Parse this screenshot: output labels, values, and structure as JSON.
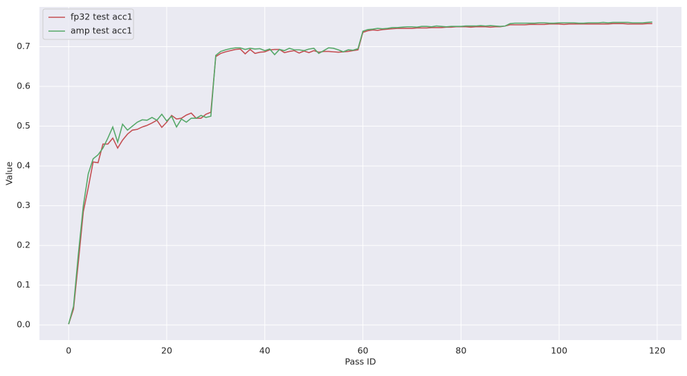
{
  "chart_data": {
    "type": "line",
    "x_label": "Pass ID",
    "y_label": "Value",
    "x": [
      0,
      1,
      2,
      3,
      4,
      5,
      6,
      7,
      8,
      9,
      10,
      11,
      12,
      13,
      14,
      15,
      16,
      17,
      18,
      19,
      20,
      21,
      22,
      23,
      24,
      25,
      26,
      27,
      28,
      29,
      30,
      31,
      32,
      33,
      34,
      35,
      36,
      37,
      38,
      39,
      40,
      41,
      42,
      43,
      44,
      45,
      46,
      47,
      48,
      49,
      50,
      51,
      52,
      53,
      54,
      55,
      56,
      57,
      58,
      59,
      60,
      61,
      62,
      63,
      64,
      65,
      66,
      67,
      68,
      69,
      70,
      71,
      72,
      73,
      74,
      75,
      76,
      77,
      78,
      79,
      80,
      81,
      82,
      83,
      84,
      85,
      86,
      87,
      88,
      89,
      90,
      91,
      92,
      93,
      94,
      95,
      96,
      97,
      98,
      99,
      100,
      101,
      102,
      103,
      104,
      105,
      106,
      107,
      108,
      109,
      110,
      111,
      112,
      113,
      114,
      115,
      116,
      117,
      118,
      119
    ],
    "series": [
      {
        "name": "fp32 test acc1",
        "color": "#c44e52",
        "values": [
          0.002,
          0.04,
          0.16,
          0.285,
          0.345,
          0.41,
          0.408,
          0.455,
          0.455,
          0.47,
          0.445,
          0.465,
          0.48,
          0.49,
          0.492,
          0.498,
          0.502,
          0.508,
          0.515,
          0.497,
          0.51,
          0.527,
          0.518,
          0.52,
          0.528,
          0.533,
          0.52,
          0.52,
          0.53,
          0.535,
          0.675,
          0.683,
          0.687,
          0.69,
          0.693,
          0.694,
          0.682,
          0.693,
          0.683,
          0.686,
          0.687,
          0.692,
          0.693,
          0.693,
          0.685,
          0.688,
          0.69,
          0.684,
          0.689,
          0.685,
          0.69,
          0.686,
          0.688,
          0.688,
          0.687,
          0.686,
          0.687,
          0.688,
          0.69,
          0.692,
          0.736,
          0.74,
          0.742,
          0.741,
          0.743,
          0.744,
          0.745,
          0.746,
          0.746,
          0.746,
          0.746,
          0.747,
          0.747,
          0.747,
          0.748,
          0.748,
          0.748,
          0.749,
          0.749,
          0.75,
          0.75,
          0.75,
          0.749,
          0.75,
          0.75,
          0.75,
          0.749,
          0.75,
          0.75,
          0.752,
          0.755,
          0.755,
          0.755,
          0.755,
          0.756,
          0.756,
          0.756,
          0.756,
          0.757,
          0.757,
          0.757,
          0.756,
          0.757,
          0.757,
          0.757,
          0.757,
          0.757,
          0.757,
          0.757,
          0.757,
          0.757,
          0.758,
          0.758,
          0.758,
          0.757,
          0.757,
          0.757,
          0.757,
          0.758,
          0.758
        ]
      },
      {
        "name": "amp test acc1",
        "color": "#55a868",
        "values": [
          0.002,
          0.047,
          0.18,
          0.3,
          0.38,
          0.418,
          0.428,
          0.445,
          0.47,
          0.498,
          0.46,
          0.505,
          0.49,
          0.5,
          0.51,
          0.516,
          0.515,
          0.522,
          0.515,
          0.53,
          0.513,
          0.525,
          0.498,
          0.518,
          0.51,
          0.52,
          0.52,
          0.527,
          0.522,
          0.525,
          0.678,
          0.688,
          0.692,
          0.695,
          0.697,
          0.697,
          0.693,
          0.696,
          0.694,
          0.695,
          0.69,
          0.694,
          0.68,
          0.693,
          0.69,
          0.696,
          0.692,
          0.692,
          0.69,
          0.694,
          0.696,
          0.683,
          0.69,
          0.697,
          0.696,
          0.692,
          0.687,
          0.692,
          0.691,
          0.695,
          0.739,
          0.743,
          0.744,
          0.746,
          0.745,
          0.746,
          0.748,
          0.748,
          0.749,
          0.75,
          0.75,
          0.749,
          0.751,
          0.751,
          0.75,
          0.752,
          0.751,
          0.75,
          0.751,
          0.751,
          0.751,
          0.752,
          0.752,
          0.752,
          0.753,
          0.752,
          0.753,
          0.752,
          0.751,
          0.752,
          0.758,
          0.759,
          0.759,
          0.759,
          0.759,
          0.759,
          0.76,
          0.76,
          0.759,
          0.759,
          0.76,
          0.76,
          0.76,
          0.76,
          0.759,
          0.759,
          0.76,
          0.76,
          0.76,
          0.761,
          0.76,
          0.761,
          0.761,
          0.761,
          0.761,
          0.76,
          0.76,
          0.76,
          0.761,
          0.762
        ]
      }
    ],
    "xlim": [
      -5.95,
      124.95
    ],
    "ylim": [
      -0.038,
      0.8
    ],
    "xticks": [
      0,
      20,
      40,
      60,
      80,
      100,
      120
    ],
    "yticks": [
      {
        "value": 0,
        "label": "0.0"
      },
      0.1,
      0.2,
      0.3,
      0.4,
      0.5,
      0.6,
      0.7
    ],
    "grid": true,
    "legend": "upper-left"
  }
}
